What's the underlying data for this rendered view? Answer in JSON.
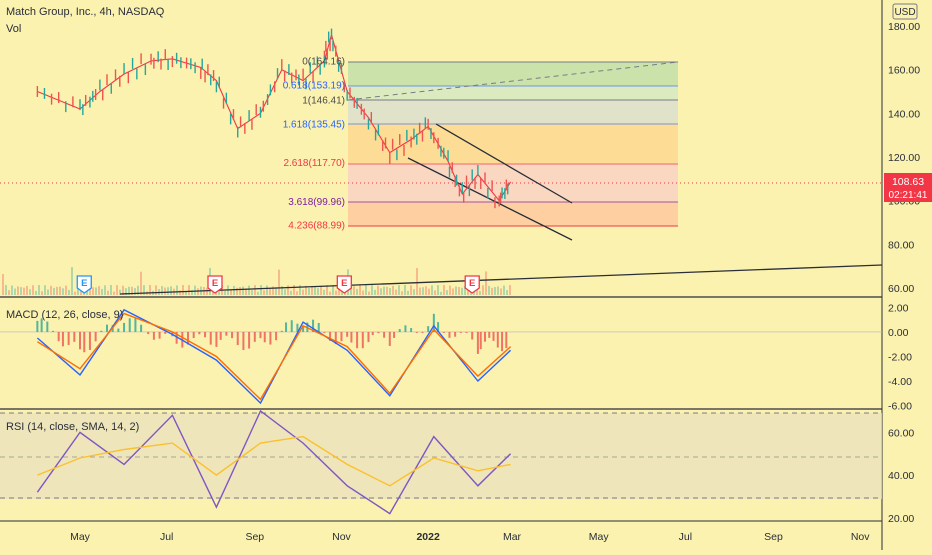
{
  "header": {
    "symbol_line": "Match Group, Inc., 4h, NASDAQ",
    "volume_label": "Vol"
  },
  "currency": "USD",
  "price_badge": {
    "price": "108.63",
    "countdown": "02:21:41"
  },
  "macd_label": "MACD (12, 26, close, 9)",
  "rsi_label": "RSI (14, close, SMA, 14, 2)",
  "fib_labels": [
    {
      "text": "0(164.16)",
      "value": 164.16,
      "color": "#4a4a4a"
    },
    {
      "text": "0.618(153.19)",
      "value": 153.19,
      "color": "#2962ff"
    },
    {
      "text": "1(146.41)",
      "value": 146.41,
      "color": "#4a4a4a"
    },
    {
      "text": "1.618(135.45)",
      "value": 135.45,
      "color": "#2962ff"
    },
    {
      "text": "2.618(117.70)",
      "value": 117.7,
      "color": "#f23645"
    },
    {
      "text": "3.618(99.96)",
      "value": 99.96,
      "color": "#7b1fa2"
    },
    {
      "text": "4.236(88.99)",
      "value": 88.99,
      "color": "#f23645"
    }
  ],
  "earnings_markers": [
    {
      "label": "E",
      "month": "May",
      "color": "#2196f3"
    },
    {
      "label": "E",
      "month": "Aug",
      "color": "#f23645"
    },
    {
      "label": "E",
      "month": "Nov",
      "color": "#f23645"
    },
    {
      "label": "E",
      "month": "Feb",
      "color": "#f23645"
    }
  ],
  "colors": {
    "background": "#fbf2b0",
    "price_line": "#f23645",
    "macd": "#2962ff",
    "signal": "#ff6d00",
    "rsi": "#7e57c2",
    "rsi_ma": "#fbc02d"
  },
  "chart_data": [
    {
      "type": "line",
      "title": "Match Group, Inc., 4h, NASDAQ",
      "ylabel": "USD",
      "y_ticks": [
        "60.00",
        "80.00",
        "100.00",
        "120.00",
        "140.00",
        "160.00",
        "180.00"
      ],
      "ylim": [
        57,
        187
      ],
      "x_ticks": [
        "May",
        "Jul",
        "Sep",
        "Nov",
        "2022",
        "Mar",
        "May",
        "Jul",
        "Sep",
        "Nov"
      ],
      "x": [
        "2021-04-01",
        "2021-05-01",
        "2021-05-15",
        "2021-06-01",
        "2021-06-20",
        "2021-07-05",
        "2021-07-25",
        "2021-08-05",
        "2021-08-20",
        "2021-09-05",
        "2021-09-20",
        "2021-10-05",
        "2021-10-20",
        "2021-10-25",
        "2021-11-05",
        "2021-11-20",
        "2021-12-05",
        "2021-12-20",
        "2022-01-01",
        "2022-01-15",
        "2022-01-25",
        "2022-02-05",
        "2022-02-20",
        "2022-02-28"
      ],
      "series": [
        {
          "values": [
            150,
            142,
            150,
            158,
            164,
            165,
            161,
            155,
            133,
            140,
            160,
            155,
            164,
            176,
            150,
            138,
            122,
            128,
            134,
            118,
            103,
            112,
            100,
            108.63
          ]
        }
      ],
      "last_price": 108.63,
      "grid": false
    },
    {
      "type": "line",
      "title": "MACD (12, 26, close, 9)",
      "y_ticks": [
        "2.00",
        "0.00",
        "-2.00",
        "-4.00",
        "-6.00"
      ],
      "ylim": [
        -6.2,
        2.6
      ],
      "x": [
        "2021-04-01",
        "2021-05-01",
        "2021-06-01",
        "2021-07-05",
        "2021-08-05",
        "2021-09-05",
        "2021-10-05",
        "2021-11-05",
        "2021-12-05",
        "2022-01-05",
        "2022-02-05",
        "2022-02-28"
      ],
      "series": [
        {
          "name": "MACD",
          "values": [
            -0.5,
            -3.5,
            1.8,
            -0.2,
            -2.3,
            -5.8,
            0.8,
            -1.5,
            -5.2,
            0.5,
            -4.0,
            -1.5
          ]
        },
        {
          "name": "Signal",
          "values": [
            -0.8,
            -3.0,
            1.5,
            0.0,
            -2.0,
            -5.5,
            0.5,
            -1.2,
            -5.0,
            0.2,
            -3.6,
            -1.2
          ]
        }
      ]
    },
    {
      "type": "line",
      "title": "RSI (14, close, SMA, 14, 2)",
      "y_ticks": [
        "60.00",
        "40.00",
        "20.00"
      ],
      "ylim": [
        19,
        70
      ],
      "bands": [
        70,
        50,
        30
      ],
      "x": [
        "2021-04-01",
        "2021-05-01",
        "2021-06-01",
        "2021-07-05",
        "2021-08-05",
        "2021-09-05",
        "2021-10-05",
        "2021-11-05",
        "2021-12-05",
        "2022-01-05",
        "2022-02-05",
        "2022-02-28"
      ],
      "series": [
        {
          "name": "RSI",
          "values": [
            32,
            60,
            45,
            68,
            25,
            70,
            55,
            35,
            22,
            58,
            35,
            50
          ]
        },
        {
          "name": "RSI-based MA",
          "values": [
            40,
            48,
            52,
            55,
            40,
            55,
            58,
            45,
            35,
            48,
            42,
            45
          ]
        }
      ]
    }
  ]
}
